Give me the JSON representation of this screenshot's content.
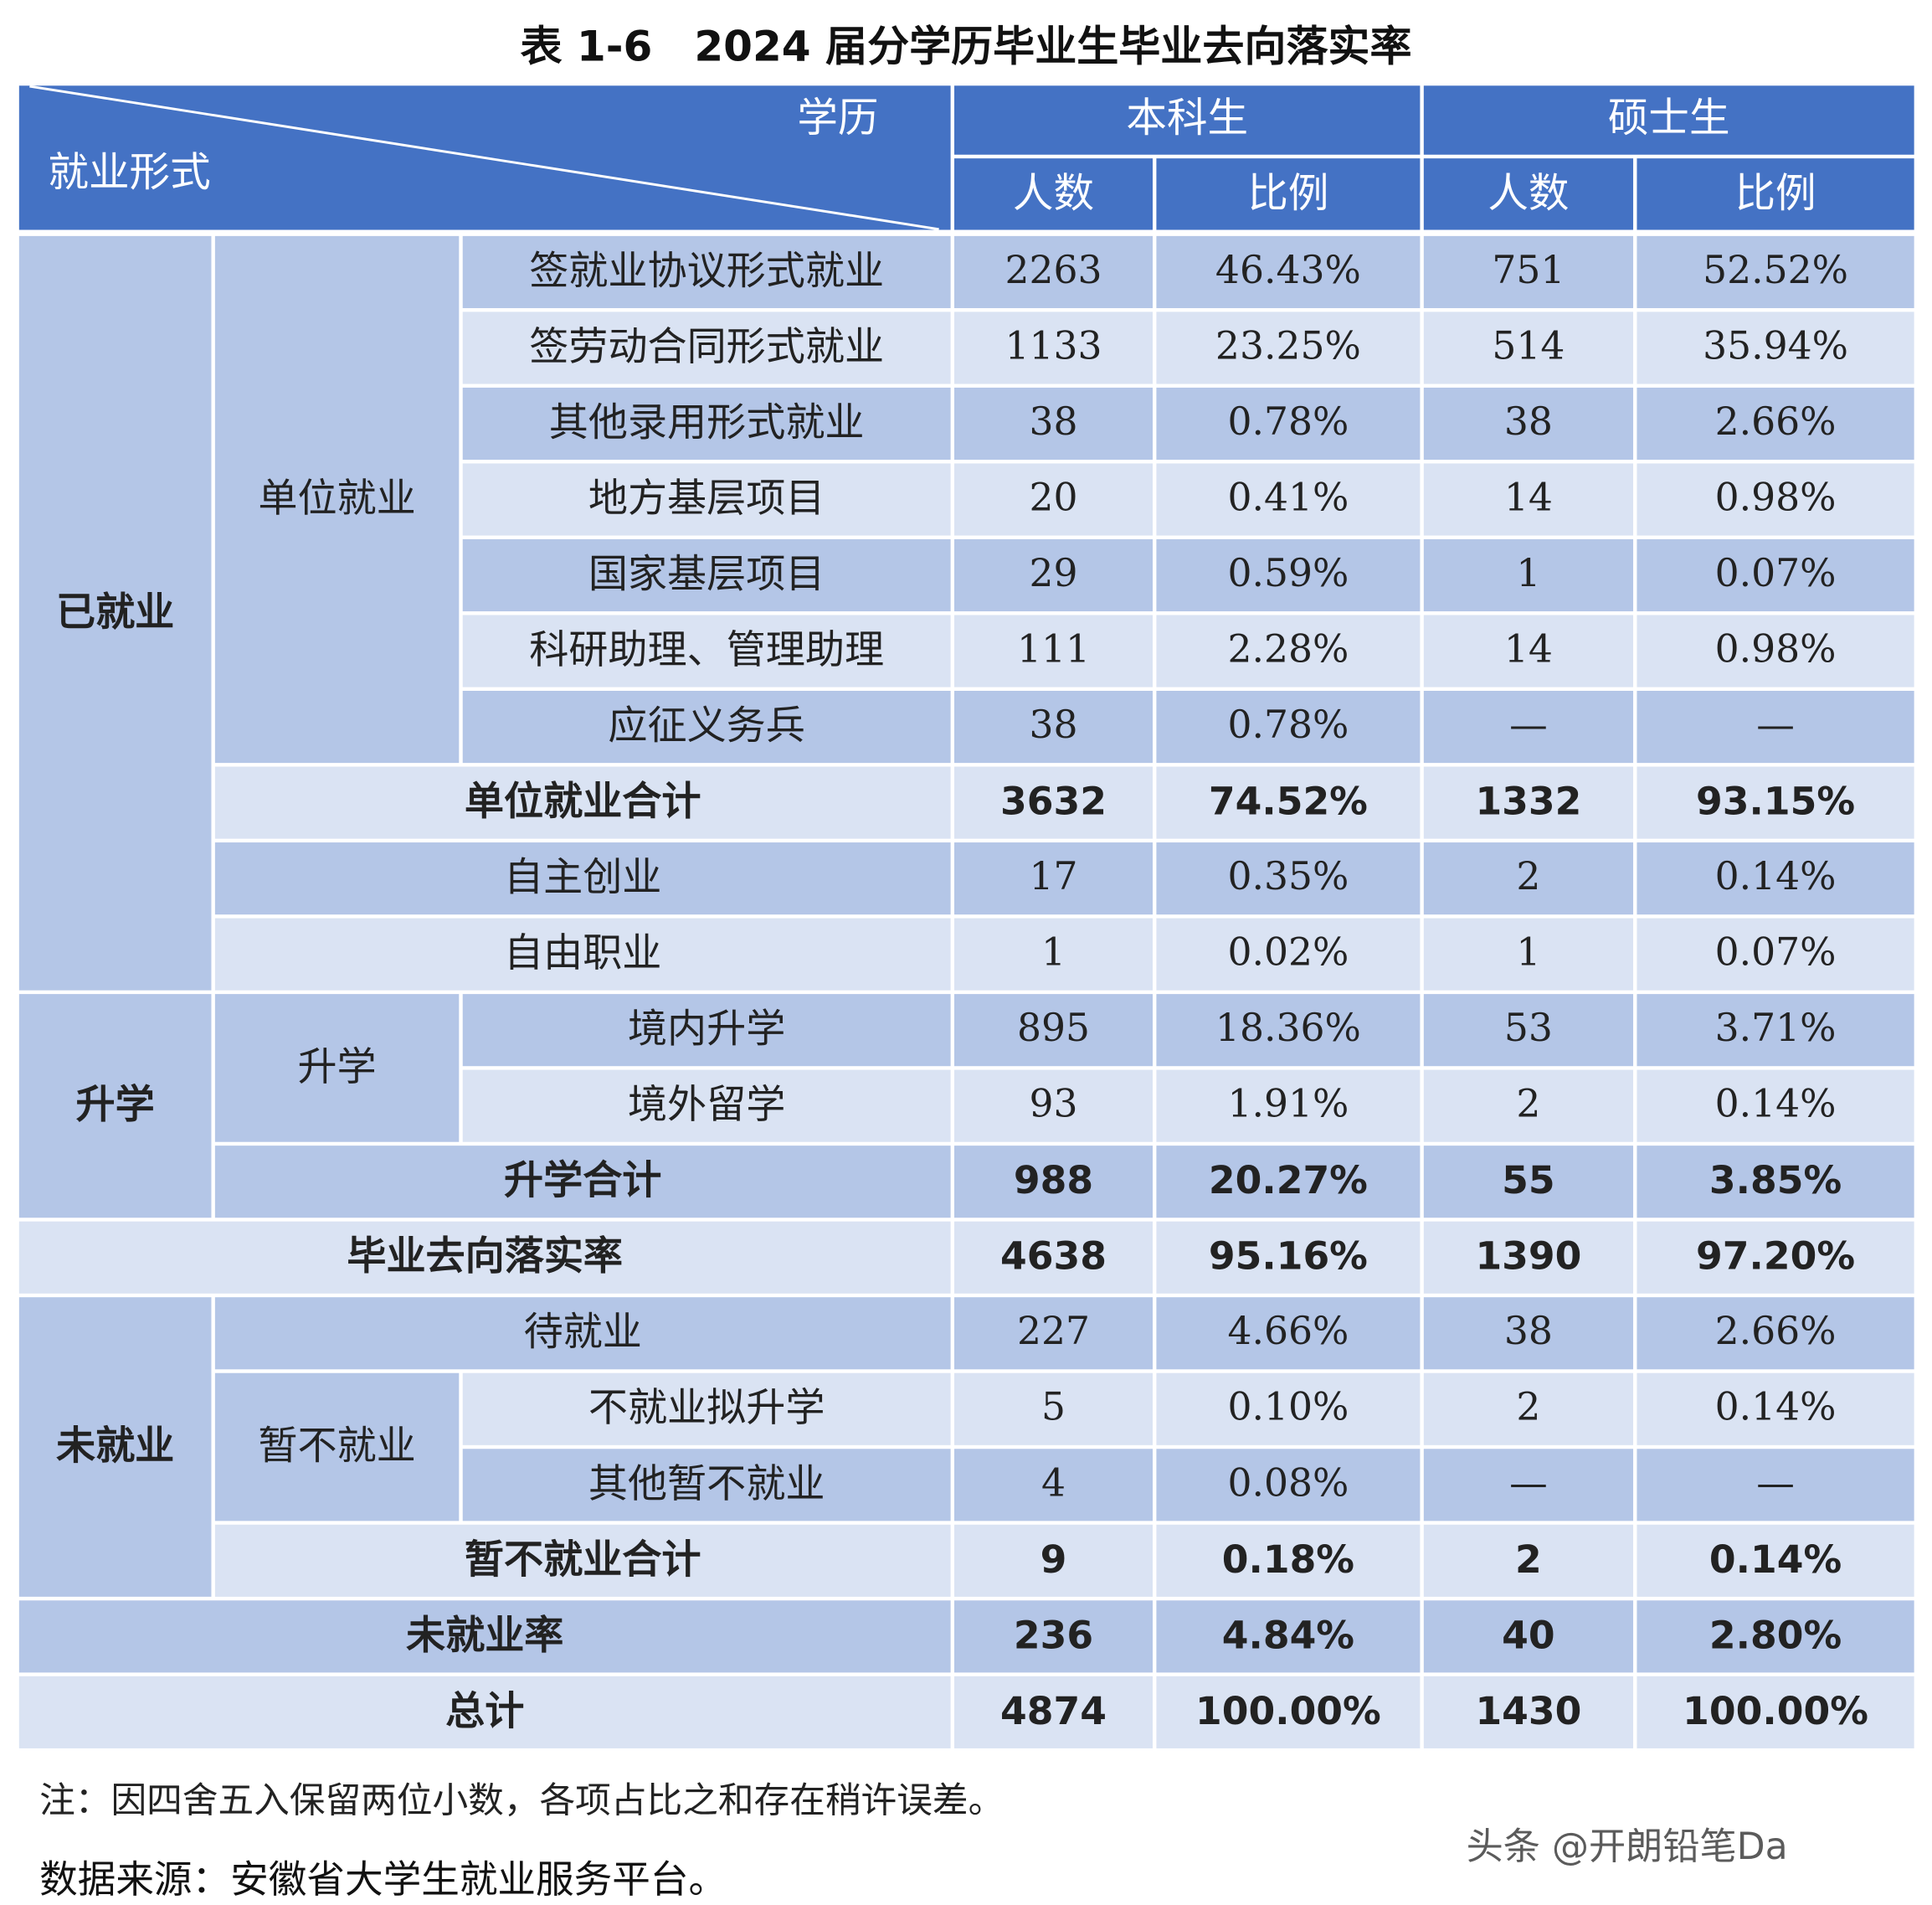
{
  "title": "表 1-6　2024 届分学历毕业生毕业去向落实率",
  "header": {
    "corner_top": "学历",
    "corner_bottom": "就业形式",
    "groups": [
      "本科生",
      "硕士生"
    ],
    "subheaders": [
      "人数",
      "比例",
      "人数",
      "比例"
    ]
  },
  "groups": [
    "已就业",
    "单位就业",
    "升学",
    "升学",
    "未就业",
    "暂不就业"
  ],
  "rows": [
    {
      "label": "签就业协议形式就业",
      "values": [
        "2263",
        "46.43%",
        "751",
        "52.52%"
      ]
    },
    {
      "label": "签劳动合同形式就业",
      "values": [
        "1133",
        "23.25%",
        "514",
        "35.94%"
      ]
    },
    {
      "label": "其他录用形式就业",
      "values": [
        "38",
        "0.78%",
        "38",
        "2.66%"
      ]
    },
    {
      "label": "地方基层项目",
      "values": [
        "20",
        "0.41%",
        "14",
        "0.98%"
      ]
    },
    {
      "label": "国家基层项目",
      "values": [
        "29",
        "0.59%",
        "1",
        "0.07%"
      ]
    },
    {
      "label": "科研助理、管理助理",
      "values": [
        "111",
        "2.28%",
        "14",
        "0.98%"
      ]
    },
    {
      "label": "应征义务兵",
      "values": [
        "38",
        "0.78%",
        "—",
        "—"
      ]
    },
    {
      "label": "单位就业合计",
      "values": [
        "3632",
        "74.52%",
        "1332",
        "93.15%"
      ]
    },
    {
      "label": "自主创业",
      "values": [
        "17",
        "0.35%",
        "2",
        "0.14%"
      ]
    },
    {
      "label": "自由职业",
      "values": [
        "1",
        "0.02%",
        "1",
        "0.07%"
      ]
    },
    {
      "label": "境内升学",
      "values": [
        "895",
        "18.36%",
        "53",
        "3.71%"
      ]
    },
    {
      "label": "境外留学",
      "values": [
        "93",
        "1.91%",
        "2",
        "0.14%"
      ]
    },
    {
      "label": "升学合计",
      "values": [
        "988",
        "20.27%",
        "55",
        "3.85%"
      ]
    },
    {
      "label": "毕业去向落实率",
      "values": [
        "4638",
        "95.16%",
        "1390",
        "97.20%"
      ]
    },
    {
      "label": "待就业",
      "values": [
        "227",
        "4.66%",
        "38",
        "2.66%"
      ]
    },
    {
      "label": "不就业拟升学",
      "values": [
        "5",
        "0.10%",
        "2",
        "0.14%"
      ]
    },
    {
      "label": "其他暂不就业",
      "values": [
        "4",
        "0.08%",
        "—",
        "—"
      ]
    },
    {
      "label": "暂不就业合计",
      "values": [
        "9",
        "0.18%",
        "2",
        "0.14%"
      ]
    },
    {
      "label": "未就业率",
      "values": [
        "236",
        "4.84%",
        "40",
        "2.80%"
      ]
    },
    {
      "label": "总计",
      "values": [
        "4874",
        "100.00%",
        "1430",
        "100.00%"
      ]
    }
  ],
  "notes": [
    "注：因四舍五入保留两位小数，各项占比之和存在稍许误差。",
    "数据来源：安徽省大学生就业服务平台。"
  ],
  "watermark": "头条 @开朗铅笔Da"
}
